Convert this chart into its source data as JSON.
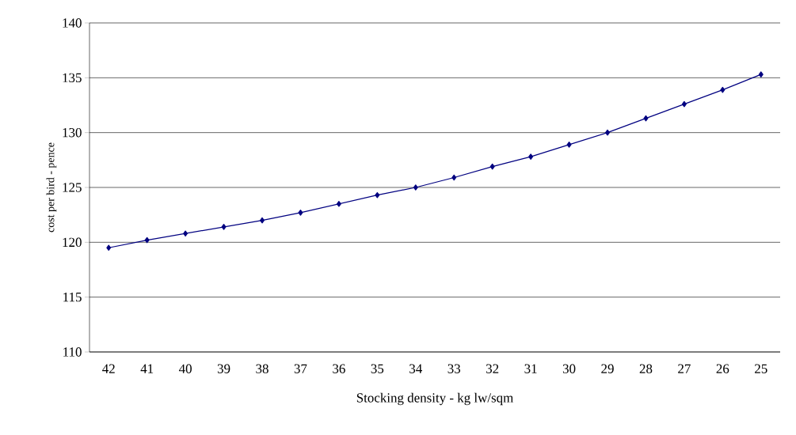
{
  "chart_data": {
    "type": "line",
    "xlabel": "Stocking density - kg lw/sqm",
    "ylabel": "cost per bird - pence",
    "categories": [
      "42",
      "41",
      "40",
      "39",
      "38",
      "37",
      "36",
      "35",
      "34",
      "33",
      "32",
      "31",
      "30",
      "29",
      "28",
      "27",
      "26",
      "25"
    ],
    "series": [
      {
        "color": "#000080",
        "values": [
          119.5,
          120.2,
          120.8,
          121.4,
          122.0,
          122.7,
          123.5,
          124.3,
          125.0,
          125.9,
          126.9,
          127.8,
          128.9,
          130.0,
          131.3,
          132.6,
          133.9,
          135.3
        ]
      }
    ],
    "ylim": [
      110,
      140
    ],
    "yticks": [
      110,
      115,
      120,
      125,
      130,
      135,
      140
    ],
    "grid": "y",
    "marker": "diamond",
    "line_style": "solid"
  }
}
